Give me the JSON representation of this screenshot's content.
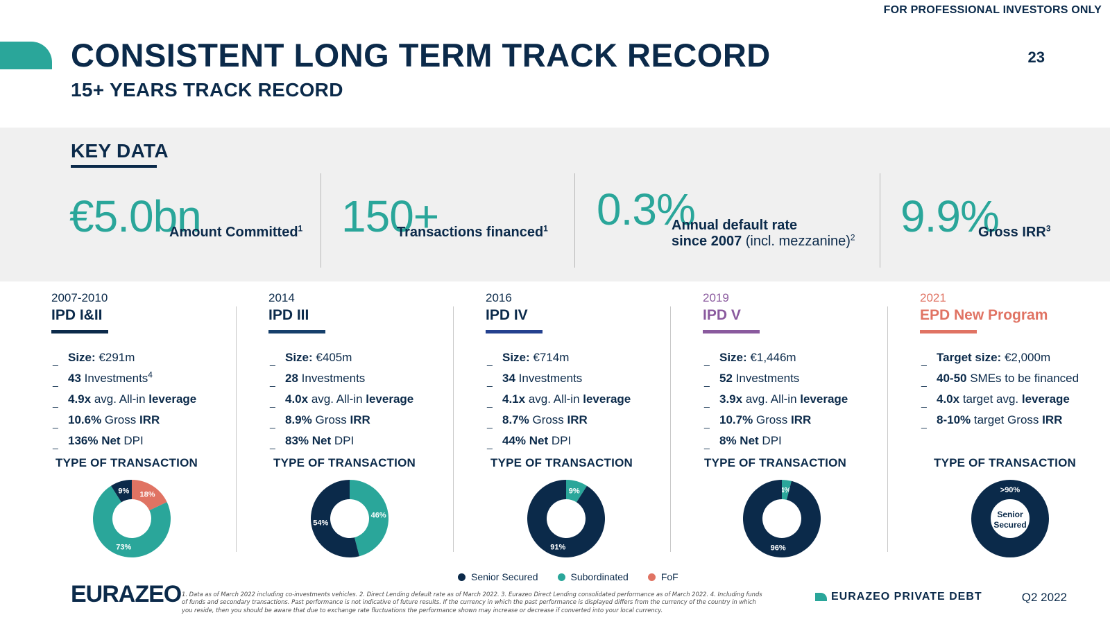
{
  "header": {
    "disclaimer": "FOR PROFESSIONAL INVESTORS ONLY",
    "title": "CONSISTENT LONG TERM TRACK RECORD",
    "subtitle": "15+ YEARS TRACK RECORD",
    "page_number": "23"
  },
  "key_data": {
    "title": "KEY DATA",
    "kpis": [
      {
        "value": "€5.0bn",
        "label": "Amount Committed",
        "sup": "1"
      },
      {
        "value": "150+",
        "label": "Transactions financed",
        "sup": "1"
      },
      {
        "value": "0.3%",
        "label_line1": "Annual default rate",
        "label_line2_bold": "since 2007",
        "label_line2_light": " (incl. mezzanine)",
        "sup": "2"
      },
      {
        "value": "9.9%",
        "label": "Gross IRR",
        "sup": "3"
      }
    ]
  },
  "funds": [
    {
      "year": "2007-2010",
      "name": "IPD I&II",
      "color": "#0b2a4a",
      "facts": [
        {
          "bold": "Size:",
          "text": " €291m"
        },
        {
          "bold": "43",
          "text": " Investments",
          "sup": "4"
        },
        {
          "bold": "4.9x",
          "text": " avg. All-in ",
          "bold2": "leverage"
        },
        {
          "bold": "10.6%",
          "text": " Gross ",
          "bold2": "IRR"
        },
        {
          "bold": "136% Net",
          "text": " DPI"
        }
      ]
    },
    {
      "year": "2014",
      "name": "IPD III",
      "color": "#163f6b",
      "facts": [
        {
          "bold": "Size:",
          "text": " €405m"
        },
        {
          "bold": "28",
          "text": " Investments"
        },
        {
          "bold": "4.0x",
          "text": " avg. All-in ",
          "bold2": "leverage"
        },
        {
          "bold": "8.9%",
          "text": " Gross ",
          "bold2": "IRR"
        },
        {
          "bold": "83% Net",
          "text": " DPI"
        }
      ]
    },
    {
      "year": "2016",
      "name": "IPD IV",
      "color": "#24418f",
      "facts": [
        {
          "bold": "Size:",
          "text": " €714m"
        },
        {
          "bold": "34",
          "text": " Investments"
        },
        {
          "bold": "4.1x",
          "text": " avg. All-in ",
          "bold2": "leverage"
        },
        {
          "bold": "8.7%",
          "text": " Gross ",
          "bold2": "IRR"
        },
        {
          "bold": "44% Net",
          "text": " DPI"
        }
      ]
    },
    {
      "year": "2019",
      "name": "IPD V",
      "color": "#8a5a9e",
      "facts": [
        {
          "bold": "Size:",
          "text": " €1,446m"
        },
        {
          "bold": "52",
          "text": " Investments"
        },
        {
          "bold": "3.9x",
          "text": " avg. All-in ",
          "bold2": "leverage"
        },
        {
          "bold": "10.7%",
          "text": " Gross ",
          "bold2": "IRR"
        },
        {
          "bold": "8% Net",
          "text": " DPI"
        }
      ]
    },
    {
      "year": "2021",
      "name": "EPD New Program",
      "color": "#e07363",
      "facts": [
        {
          "bold": "Target size:",
          "text": " €2,000m"
        },
        {
          "bold": "40-50",
          "text": " SMEs to be financed"
        },
        {
          "bold": "4.0x",
          "text": " target avg. ",
          "bold2": "leverage"
        },
        {
          "bold": "8-10%",
          "text": " target Gross ",
          "bold2": "IRR"
        }
      ]
    }
  ],
  "chart_data": [
    {
      "type": "pie",
      "title": "TYPE OF TRANSACTION",
      "slices": [
        {
          "name": "Senior Secured",
          "value": 9,
          "label": "9%"
        },
        {
          "name": "Subordinated",
          "value": 73,
          "label": "73%"
        },
        {
          "name": "FoF",
          "value": 18,
          "label": "18%"
        }
      ]
    },
    {
      "type": "pie",
      "title": "TYPE OF TRANSACTION",
      "slices": [
        {
          "name": "Senior Secured",
          "value": 54,
          "label": "54%"
        },
        {
          "name": "Subordinated",
          "value": 46,
          "label": "46%"
        }
      ]
    },
    {
      "type": "pie",
      "title": "TYPE OF TRANSACTION",
      "slices": [
        {
          "name": "Senior Secured",
          "value": 91,
          "label": "91%"
        },
        {
          "name": "Subordinated",
          "value": 9,
          "label": "9%"
        }
      ]
    },
    {
      "type": "pie",
      "title": "TYPE OF TRANSACTION",
      "slices": [
        {
          "name": "Senior Secured",
          "value": 96,
          "label": "96%"
        },
        {
          "name": "Subordinated",
          "value": 4,
          "label": "4%"
        }
      ]
    },
    {
      "type": "pie",
      "title": "TYPE OF TRANSACTION",
      "slices": [
        {
          "name": "Senior Secured",
          "value": 100,
          "label": ">90%"
        }
      ],
      "center_label": [
        "Senior",
        "Secured"
      ]
    }
  ],
  "legend": [
    {
      "name": "Senior Secured",
      "color": "#0b2a4a"
    },
    {
      "name": "Subordinated",
      "color": "#2aa69a"
    },
    {
      "name": "FoF",
      "color": "#e07363"
    }
  ],
  "footer": {
    "logo": "EURAZEO",
    "footnote": "1. Data as of March 2022 including co-investments vehicles. 2. Direct Lending default rate as of March 2022. 3. Eurazeo Direct Lending consolidated performance as of March 2022. 4. Including funds of funds and secondary transactions. Past performance is not indicative of future results. If the currency in which the past performance is displayed differs from the currency of the country in which you reside, then you should be aware that due to exchange rate fluctuations the performance shown may increase or decrease if converted into your local currency.",
    "brand": "EURAZEO PRIVATE DEBT",
    "period": "Q2 2022"
  }
}
